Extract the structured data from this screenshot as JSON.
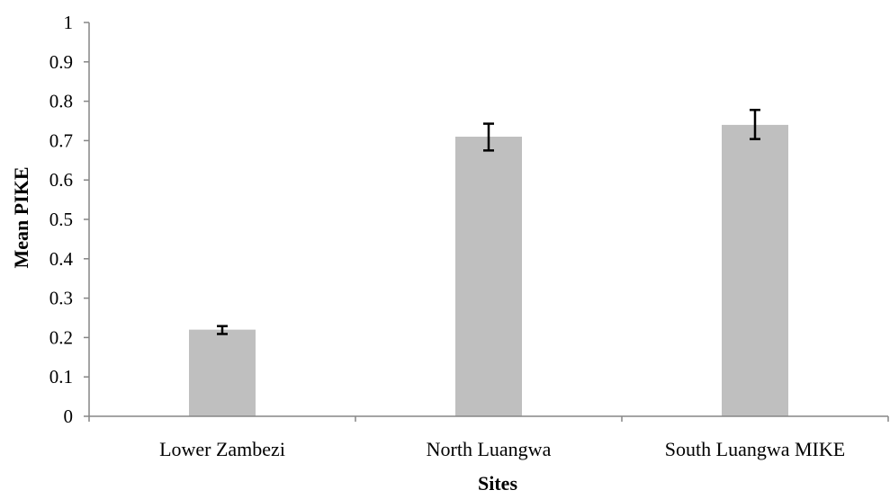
{
  "chart_data": {
    "type": "bar",
    "title": "",
    "xlabel": "Sites",
    "ylabel": "Mean PIKE",
    "categories": [
      "Lower Zambezi",
      "North Luangwa",
      "South Luangwa MIKE"
    ],
    "values": [
      0.22,
      0.71,
      0.74
    ],
    "error": [
      {
        "low": 0.209,
        "high": 0.229
      },
      {
        "low": 0.675,
        "high": 0.743
      },
      {
        "low": 0.704,
        "high": 0.778
      }
    ],
    "ylim": [
      0,
      1
    ],
    "yticks": [
      "0",
      "0.1",
      "0.2",
      "0.3",
      "0.4",
      "0.5",
      "0.6",
      "0.7",
      "0.8",
      "0.9",
      "1"
    ],
    "grid": false,
    "legend": "none",
    "bar_color": "#bfbfbf",
    "axis_color": "#868686",
    "error_bar_color": "#000000"
  }
}
